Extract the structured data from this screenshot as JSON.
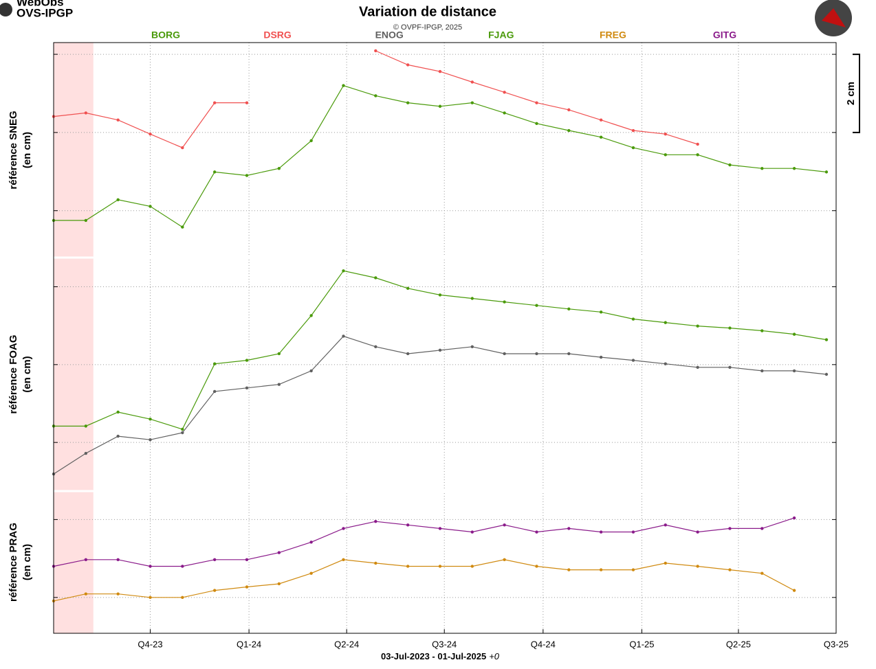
{
  "header": {
    "logo_line1": "WebObs",
    "logo_line2": "OVS-IPGP"
  },
  "chart_data": {
    "type": "line",
    "title": "Variation de distance",
    "subtitle": "© OVPF-IPGP, 2025",
    "xlabel": "03-Jul-2023 - 01-Jul-2025",
    "xlabel_note": "+0",
    "x": [
      "2023-07-03",
      "2023-08-02",
      "2023-09-01",
      "2023-10-01",
      "2023-10-31",
      "2023-11-30",
      "2023-12-30",
      "2024-01-29",
      "2024-02-28",
      "2024-03-29",
      "2024-04-28",
      "2024-05-28",
      "2024-06-27",
      "2024-07-27",
      "2024-08-26",
      "2024-09-25",
      "2024-10-25",
      "2024-11-24",
      "2024-12-24",
      "2025-01-23",
      "2025-02-22",
      "2025-03-24",
      "2025-04-23",
      "2025-05-23",
      "2025-06-22"
    ],
    "xlim": [
      "2023-07-03",
      "2025-07-01"
    ],
    "xticks": [
      {
        "value": "2023-10-01",
        "label": "Q4-23"
      },
      {
        "value": "2024-01-01",
        "label": "Q1-24"
      },
      {
        "value": "2024-04-01",
        "label": "Q2-24"
      },
      {
        "value": "2024-07-01",
        "label": "Q3-24"
      },
      {
        "value": "2024-10-01",
        "label": "Q4-24"
      },
      {
        "value": "2025-01-01",
        "label": "Q1-25"
      },
      {
        "value": "2025-04-01",
        "label": "Q2-25"
      },
      {
        "value": "2025-07-01",
        "label": "Q3-25"
      }
    ],
    "shaded": [
      "2023-07-03",
      "2023-08-09"
    ],
    "shaded_color": "#ffe0e0",
    "grid": true,
    "scale_bar": {
      "value": 2,
      "label": "2 cm"
    },
    "panels": [
      {
        "ylabel": "référence SNEG",
        "yunit": "(en cm)",
        "ylim": [
          -1.2,
          4.3
        ],
        "yticks": [
          0,
          2,
          4
        ],
        "series": [
          {
            "name": "BORG",
            "color": "#4a9a0a",
            "values": [
              -0.25,
              -0.25,
              0.28,
              0.11,
              -0.42,
              0.99,
              0.9,
              1.08,
              1.79,
              3.2,
              2.94,
              2.76,
              2.67,
              2.76,
              2.5,
              2.23,
              2.05,
              1.88,
              1.61,
              1.43,
              1.43,
              1.17,
              1.08,
              1.08,
              0.99
            ]
          },
          {
            "name": "DSRG",
            "color": "#f05050",
            "values": [
              2.41,
              2.5,
              2.32,
              1.96,
              1.61,
              2.76,
              2.76,
              null,
              null,
              null,
              4.09,
              3.73,
              3.56,
              3.29,
              3.03,
              2.76,
              2.58,
              2.32,
              2.05,
              1.96,
              1.7,
              null,
              null,
              null,
              null
            ]
          }
        ]
      },
      {
        "ylabel": "référence FOAG",
        "yunit": "(en cm)",
        "ylim": [
          -1.25,
          4.75
        ],
        "yticks": [
          0,
          2,
          4
        ],
        "series": [
          {
            "name": "ENOG",
            "color": "#606060",
            "values": [
              -0.81,
              -0.28,
              0.16,
              0.07,
              0.25,
              1.31,
              1.4,
              1.49,
              1.84,
              2.73,
              2.46,
              2.28,
              2.37,
              2.46,
              2.28,
              2.28,
              2.28,
              2.19,
              2.11,
              2.02,
              1.93,
              1.93,
              1.84,
              1.84,
              1.75
            ]
          },
          {
            "name": "FJAG",
            "color": "#4a9a0a",
            "values": [
              0.42,
              0.42,
              0.78,
              0.6,
              0.34,
              2.02,
              2.11,
              2.28,
              3.26,
              4.41,
              4.23,
              3.96,
              3.79,
              3.7,
              3.61,
              3.52,
              3.43,
              3.35,
              3.17,
              3.08,
              2.99,
              2.94,
              2.87,
              2.78,
              2.64
            ]
          }
        ]
      },
      {
        "ylabel": "référence PRAG",
        "yunit": "(en cm)",
        "ylim": [
          -0.92,
          2.73
        ],
        "yticks": [
          0,
          2
        ],
        "series": [
          {
            "name": "FREG",
            "color": "#d08a10",
            "values": [
              -0.09,
              0.09,
              0.09,
              0,
              0,
              0.18,
              0.27,
              0.35,
              0.62,
              0.97,
              0.88,
              0.8,
              0.8,
              0.8,
              0.97,
              0.8,
              0.71,
              0.71,
              0.71,
              0.88,
              0.8,
              0.71,
              0.62,
              0.18,
              null
            ]
          },
          {
            "name": "GITG",
            "color": "#8a1a8a",
            "values": [
              0.8,
              0.97,
              0.97,
              0.8,
              0.8,
              0.97,
              0.97,
              1.15,
              1.42,
              1.77,
              1.95,
              1.86,
              1.77,
              1.68,
              1.86,
              1.68,
              1.77,
              1.68,
              1.68,
              1.86,
              1.68,
              1.77,
              1.77,
              2.04,
              null
            ]
          }
        ]
      }
    ]
  }
}
